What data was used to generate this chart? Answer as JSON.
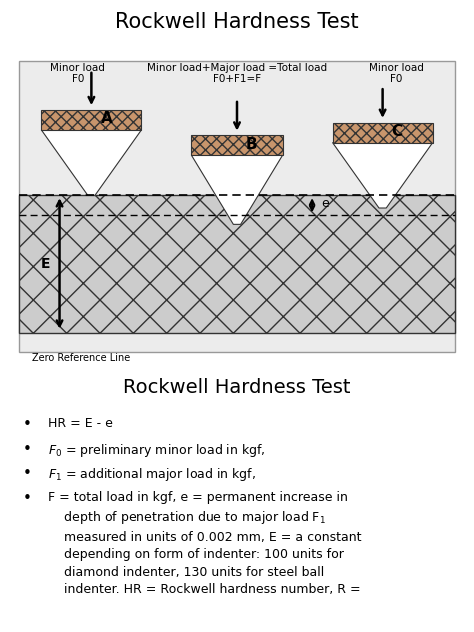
{
  "title1": "Rockwell Hardness Test",
  "title2": "Rockwell Hardness Test",
  "page_bg": "#ffffff",
  "diagram_bg": "#e8e8e8",
  "cap_color": "#c8956c",
  "material_bg": "#d8d8d8",
  "zero_ref_label": "Zero Reference Line",
  "label_A": "A",
  "label_B": "B",
  "label_C": "C",
  "label_e": "e",
  "label_E": "E",
  "top_label_left": "Minor load\nF0",
  "top_label_mid": "Minor load+Major load =Total load\nF0+F1=F",
  "top_label_right": "Minor load\nF0",
  "bullet1": "HR = E - e",
  "bullet2_pre": "F",
  "bullet2_sub": "0",
  "bullet2_post": " = preliminary minor load in kgf,",
  "bullet3_pre": "F",
  "bullet3_sub": "1",
  "bullet3_post": " = additional major load in kgf,",
  "bullet4_line1": "F = total load in kgf, e = permanent increase in",
  "bullet4_line2": "depth of penetration due to major load F",
  "bullet4_line2_sub": "1",
  "bullet4_line3": "measured in units of 0.002 mm, E = a constant",
  "bullet4_line4": "depending on form of indenter: 100 units for",
  "bullet4_line5": "diamond indenter, 130 units for steel ball",
  "bullet4_line6": "indenter. HR = Rockwell hardness number, R ="
}
